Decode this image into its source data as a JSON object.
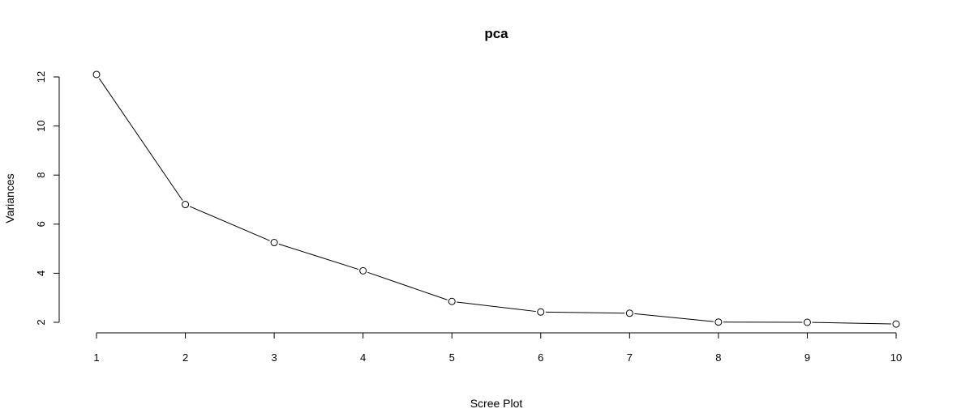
{
  "chart_data": {
    "type": "line",
    "title": "pca",
    "xlabel": "Scree Plot",
    "ylabel": "Variances",
    "x": [
      1,
      2,
      3,
      4,
      5,
      6,
      7,
      8,
      9,
      10
    ],
    "series": [
      {
        "values": [
          12.1,
          6.8,
          5.25,
          4.1,
          2.85,
          2.42,
          2.37,
          2.01,
          2.0,
          1.93
        ]
      }
    ],
    "xticks": [
      "1",
      "2",
      "3",
      "4",
      "5",
      "6",
      "7",
      "8",
      "9",
      "10"
    ],
    "yticks": [
      "2",
      "4",
      "6",
      "8",
      "10",
      "12"
    ],
    "ylim": [
      1.6,
      12.4
    ],
    "xlim": [
      1,
      10
    ],
    "grid": false,
    "markers": "open-circle",
    "colors": {
      "line": "#000000",
      "marker_fill": "#ffffff"
    }
  }
}
